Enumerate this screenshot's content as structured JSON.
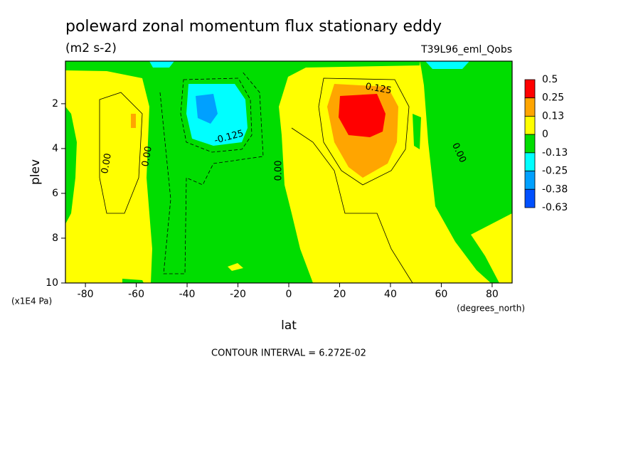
{
  "chart_data": {
    "type": "contour",
    "title": "poleward zonal momentum flux stationary eddy",
    "subtitle": "(m2 s-2)",
    "dataset": "T39L96_eml_Qobs",
    "x_label": "lat",
    "x_units": "(degrees_north)",
    "y_label": "plev",
    "y_units": "(x1E4 Pa)",
    "footer": "CONTOUR INTERVAL = 6.272E-02",
    "xlim": [
      -87.86,
      87.86
    ],
    "xticks": [
      -80,
      -60,
      -40,
      -20,
      0,
      20,
      40,
      60,
      80
    ],
    "ylim": [
      10,
      0.1
    ],
    "yticks": [
      2,
      4,
      6,
      8,
      10
    ],
    "colorbar": {
      "levels": [
        0.5,
        0.25,
        0.13,
        0,
        -0.13,
        -0.25,
        -0.38,
        -0.63
      ],
      "colors": [
        "#ff0000",
        "#ffa500",
        "#ffff00",
        "#00dd00",
        "#00ffff",
        "#00a0ff",
        "#0050ff"
      ]
    },
    "contour_labels": [
      "0.00",
      "0.00",
      "0.00",
      "0.00",
      "-0.125",
      "0.125"
    ]
  }
}
